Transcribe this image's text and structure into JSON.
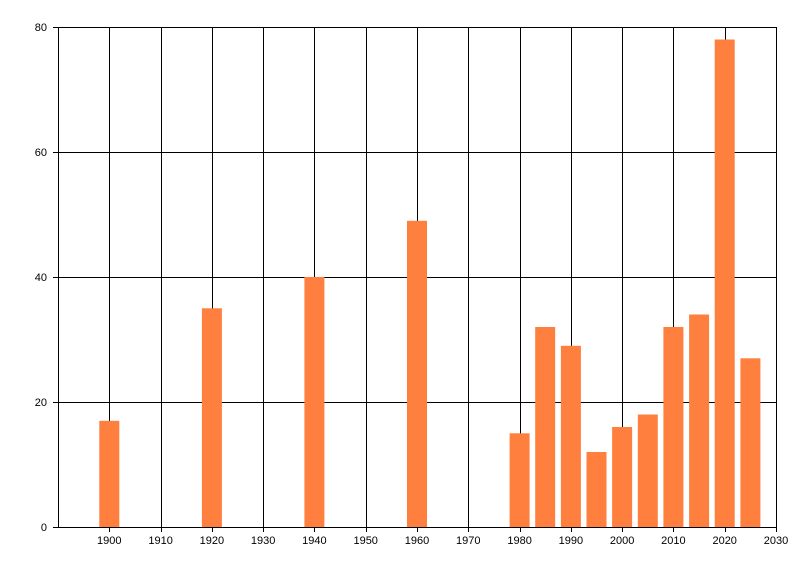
{
  "chart_data": {
    "type": "bar",
    "bar_color": "#ff7f3f",
    "gridline_color": "#000000",
    "grid": true,
    "legend": "none",
    "title": "",
    "xlabel": "",
    "ylabel": "",
    "xlim": [
      1890,
      2030
    ],
    "ylim": [
      0,
      80
    ],
    "xticks": [
      1900,
      1910,
      1920,
      1930,
      1940,
      1950,
      1960,
      1970,
      1980,
      1990,
      2000,
      2010,
      2020,
      2030
    ],
    "yticks": [
      0,
      20,
      40,
      60,
      80
    ],
    "x": [
      1900,
      1920,
      1940,
      1960,
      1980,
      1985,
      1990,
      1995,
      2000,
      2005,
      2010,
      2015,
      2020,
      2025
    ],
    "values": [
      17,
      35,
      40,
      49,
      15,
      32,
      29,
      12,
      16,
      18,
      32,
      34,
      78,
      27
    ]
  }
}
